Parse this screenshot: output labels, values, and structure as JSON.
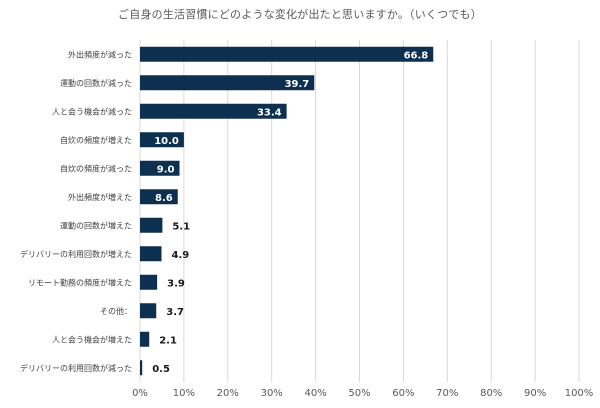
{
  "chart_data": {
    "type": "bar",
    "orientation": "horizontal",
    "title": "ご自身の生活習慣にどのような変化が出たと思いますか。（いくつでも）",
    "categories": [
      "外出頻度が減った",
      "運動の回数が減った",
      "人と会う機会が減った",
      "自炊の頻度が増えた",
      "自炊の頻度が減った",
      "外出頻度が増えた",
      "運動の回数が増えた",
      "デリバリーの利用回数が増えた",
      "リモート勤務の頻度が増えた",
      "その他：",
      "人と会う機会が増えた",
      "デリバリーの利用回数が減った"
    ],
    "values": [
      66.8,
      39.7,
      33.4,
      10.0,
      9.0,
      8.6,
      5.1,
      4.9,
      3.9,
      3.7,
      2.1,
      0.5
    ],
    "value_labels": [
      "66.8",
      "39.7",
      "33.4",
      "10.0",
      "9.0",
      "8.6",
      "5.1",
      "4.9",
      "3.9",
      "3.7",
      "2.1",
      "0.5"
    ],
    "xlim": [
      0,
      100
    ],
    "xticks": [
      "0%",
      "10%",
      "20%",
      "30%",
      "40%",
      "50%",
      "60%",
      "70%",
      "80%",
      "90%",
      "100%"
    ],
    "xlabel": "",
    "ylabel": "",
    "grid": true,
    "legend": "none",
    "bar_color": "#0e3050",
    "inside_label_color": "#ffffff",
    "outside_label_color": "#1a1a1a",
    "grid_color": "#d9d9d9"
  }
}
